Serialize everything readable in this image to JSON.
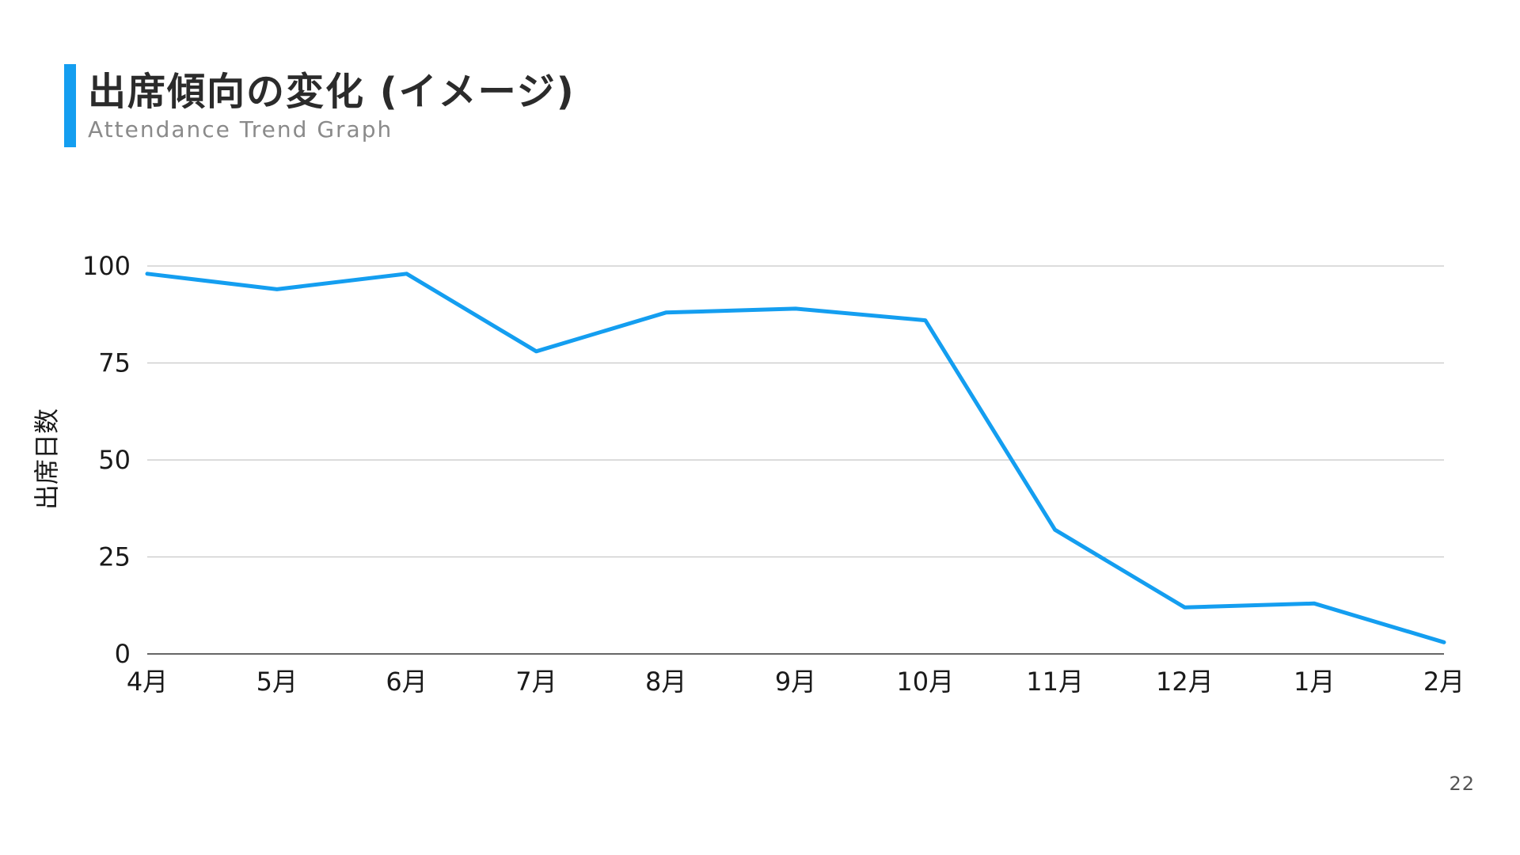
{
  "slide": {
    "title": "出席傾向の変化 (イメージ)",
    "subtitle": "Attendance Trend Graph",
    "page_number": "22",
    "accent_color": "#149ef0"
  },
  "chart_data": {
    "type": "line",
    "categories": [
      "4月",
      "5月",
      "6月",
      "7月",
      "8月",
      "9月",
      "10月",
      "11月",
      "12月",
      "1月",
      "2月"
    ],
    "series": [
      {
        "values": [
          98,
          94,
          98,
          78,
          88,
          89,
          86,
          32,
          12,
          13,
          3
        ],
        "color": "#149ef0"
      }
    ],
    "ylabel": "出席日数",
    "xlabel": "",
    "ylim": [
      0,
      100
    ],
    "yticks": [
      0,
      25,
      50,
      75,
      100
    ],
    "grid": true,
    "legend": "none"
  }
}
